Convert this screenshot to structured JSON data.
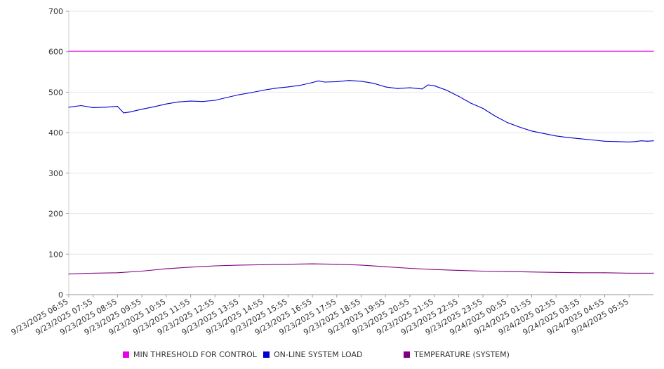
{
  "chart_data": {
    "type": "line",
    "ylim": [
      0,
      700
    ],
    "yticks": [
      0,
      100,
      200,
      300,
      400,
      500,
      600,
      700
    ],
    "grid": true,
    "legend_position": "bottom",
    "x_tick_labels": [
      "9/23/2025 06:55",
      "9/23/2025 07:55",
      "9/23/2025 08:55",
      "9/23/2025 09:55",
      "9/23/2025 10:55",
      "9/23/2025 11:55",
      "9/23/2025 12:55",
      "9/23/2025 13:55",
      "9/23/2025 14:55",
      "9/23/2025 15:55",
      "9/23/2025 16:55",
      "9/23/2025 17:55",
      "9/23/2025 18:55",
      "9/23/2025 19:55",
      "9/23/2025 20:55",
      "9/23/2025 21:55",
      "9/23/2025 22:55",
      "9/23/2025 23:55",
      "9/24/2025 00:55",
      "9/24/2025 01:55",
      "9/24/2025 02:55",
      "9/24/2025 03:55",
      "9/24/2025 04:55",
      "9/24/2025 05:55"
    ],
    "x_range": [
      "9/23/2025 06:55",
      "9/24/2025 06:55"
    ],
    "series": [
      {
        "name": "MIN THRESHOLD FOR CONTROL",
        "color": "#e800e8",
        "points": [
          [
            "9/23/2025 06:55",
            601
          ],
          [
            "9/24/2025 06:55",
            601
          ]
        ]
      },
      {
        "name": "ON-LINE SYSTEM LOAD",
        "color": "#0000cc",
        "points": [
          [
            "9/23/2025 06:55",
            463
          ],
          [
            "9/23/2025 07:25",
            467
          ],
          [
            "9/23/2025 07:55",
            462
          ],
          [
            "9/23/2025 08:25",
            463
          ],
          [
            "9/23/2025 08:55",
            465
          ],
          [
            "9/23/2025 09:10",
            449
          ],
          [
            "9/23/2025 09:25",
            451
          ],
          [
            "9/23/2025 09:55",
            458
          ],
          [
            "9/23/2025 10:25",
            464
          ],
          [
            "9/23/2025 10:55",
            471
          ],
          [
            "9/23/2025 11:25",
            476
          ],
          [
            "9/23/2025 11:55",
            478
          ],
          [
            "9/23/2025 12:25",
            477
          ],
          [
            "9/23/2025 12:55",
            480
          ],
          [
            "9/23/2025 13:25",
            487
          ],
          [
            "9/23/2025 13:55",
            494
          ],
          [
            "9/23/2025 14:25",
            499
          ],
          [
            "9/23/2025 14:55",
            505
          ],
          [
            "9/23/2025 15:25",
            510
          ],
          [
            "9/23/2025 15:55",
            513
          ],
          [
            "9/23/2025 16:25",
            517
          ],
          [
            "9/23/2025 16:55",
            524
          ],
          [
            "9/23/2025 17:10",
            528
          ],
          [
            "9/23/2025 17:25",
            525
          ],
          [
            "9/23/2025 17:55",
            526
          ],
          [
            "9/23/2025 18:25",
            529
          ],
          [
            "9/23/2025 18:55",
            527
          ],
          [
            "9/23/2025 19:25",
            522
          ],
          [
            "9/23/2025 19:55",
            513
          ],
          [
            "9/23/2025 20:25",
            509
          ],
          [
            "9/23/2025 20:55",
            511
          ],
          [
            "9/23/2025 21:25",
            508
          ],
          [
            "9/23/2025 21:40",
            518
          ],
          [
            "9/23/2025 21:55",
            516
          ],
          [
            "9/23/2025 22:25",
            505
          ],
          [
            "9/23/2025 22:55",
            490
          ],
          [
            "9/23/2025 23:25",
            473
          ],
          [
            "9/23/2025 23:55",
            460
          ],
          [
            "9/24/2025 00:25",
            441
          ],
          [
            "9/24/2025 00:55",
            425
          ],
          [
            "9/24/2025 01:25",
            414
          ],
          [
            "9/24/2025 01:55",
            404
          ],
          [
            "9/24/2025 02:25",
            398
          ],
          [
            "9/24/2025 02:55",
            392
          ],
          [
            "9/24/2025 03:25",
            388
          ],
          [
            "9/24/2025 03:55",
            385
          ],
          [
            "9/24/2025 04:25",
            382
          ],
          [
            "9/24/2025 04:55",
            379
          ],
          [
            "9/24/2025 05:25",
            378
          ],
          [
            "9/24/2025 05:55",
            377
          ],
          [
            "9/24/2025 06:10",
            378
          ],
          [
            "9/24/2025 06:25",
            380
          ],
          [
            "9/24/2025 06:40",
            379
          ],
          [
            "9/24/2025 06:55",
            380
          ]
        ]
      },
      {
        "name": "TEMPERATURE (SYSTEM)",
        "color": "#800080",
        "points": [
          [
            "9/23/2025 06:55",
            51
          ],
          [
            "9/23/2025 07:55",
            53
          ],
          [
            "9/23/2025 08:55",
            54
          ],
          [
            "9/23/2025 09:55",
            58
          ],
          [
            "9/23/2025 10:55",
            64
          ],
          [
            "9/23/2025 11:55",
            68
          ],
          [
            "9/23/2025 12:55",
            71
          ],
          [
            "9/23/2025 13:55",
            73
          ],
          [
            "9/23/2025 14:55",
            74
          ],
          [
            "9/23/2025 15:55",
            75
          ],
          [
            "9/23/2025 16:55",
            76
          ],
          [
            "9/23/2025 17:55",
            75
          ],
          [
            "9/23/2025 18:55",
            73
          ],
          [
            "9/23/2025 19:55",
            69
          ],
          [
            "9/23/2025 20:55",
            65
          ],
          [
            "9/23/2025 21:55",
            62
          ],
          [
            "9/23/2025 22:55",
            60
          ],
          [
            "9/23/2025 23:55",
            58
          ],
          [
            "9/24/2025 00:55",
            57
          ],
          [
            "9/24/2025 01:55",
            56
          ],
          [
            "9/24/2025 02:55",
            55
          ],
          [
            "9/24/2025 03:55",
            54
          ],
          [
            "9/24/2025 04:55",
            54
          ],
          [
            "9/24/2025 05:55",
            53
          ],
          [
            "9/24/2025 06:55",
            53
          ]
        ]
      }
    ]
  }
}
